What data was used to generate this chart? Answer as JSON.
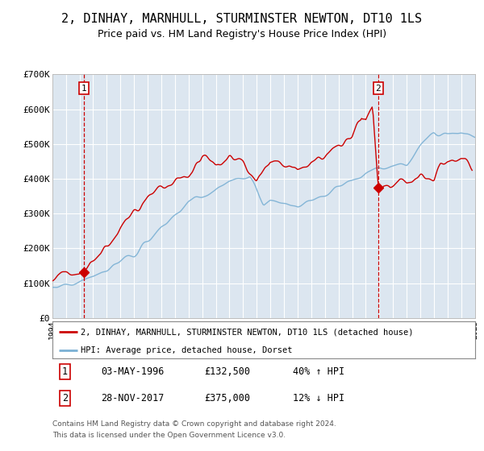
{
  "title": "2, DINHAY, MARNHULL, STURMINSTER NEWTON, DT10 1LS",
  "subtitle": "Price paid vs. HM Land Registry's House Price Index (HPI)",
  "title_fontsize": 11,
  "subtitle_fontsize": 9,
  "background_color": "#ffffff",
  "plot_bg_color": "#dce6f0",
  "grid_color": "#ffffff",
  "sale1_date_num": 1996.34,
  "sale1_price": 132500,
  "sale2_date_num": 2017.91,
  "sale2_price": 375000,
  "vline1_x": 1996.34,
  "vline2_x": 2017.91,
  "xmin": 1994,
  "xmax": 2025,
  "ymin": 0,
  "ymax": 700000,
  "red_line_color": "#cc0000",
  "blue_line_color": "#7ab0d4",
  "vline_color": "#cc0000",
  "marker_color": "#cc0000",
  "legend_label_red": "2, DINHAY, MARNHULL, STURMINSTER NEWTON, DT10 1LS (detached house)",
  "legend_label_blue": "HPI: Average price, detached house, Dorset",
  "annotation1_label": "1",
  "annotation1_date": "03-MAY-1996",
  "annotation1_price": "£132,500",
  "annotation1_hpi": "40% ↑ HPI",
  "annotation2_label": "2",
  "annotation2_date": "28-NOV-2017",
  "annotation2_price": "£375,000",
  "annotation2_hpi": "12% ↓ HPI",
  "footer1": "Contains HM Land Registry data © Crown copyright and database right 2024.",
  "footer2": "This data is licensed under the Open Government Licence v3.0.",
  "ytick_labels": [
    "£0",
    "£100K",
    "£200K",
    "£300K",
    "£400K",
    "£500K",
    "£600K",
    "£700K"
  ],
  "ytick_values": [
    0,
    100000,
    200000,
    300000,
    400000,
    500000,
    600000,
    700000
  ]
}
